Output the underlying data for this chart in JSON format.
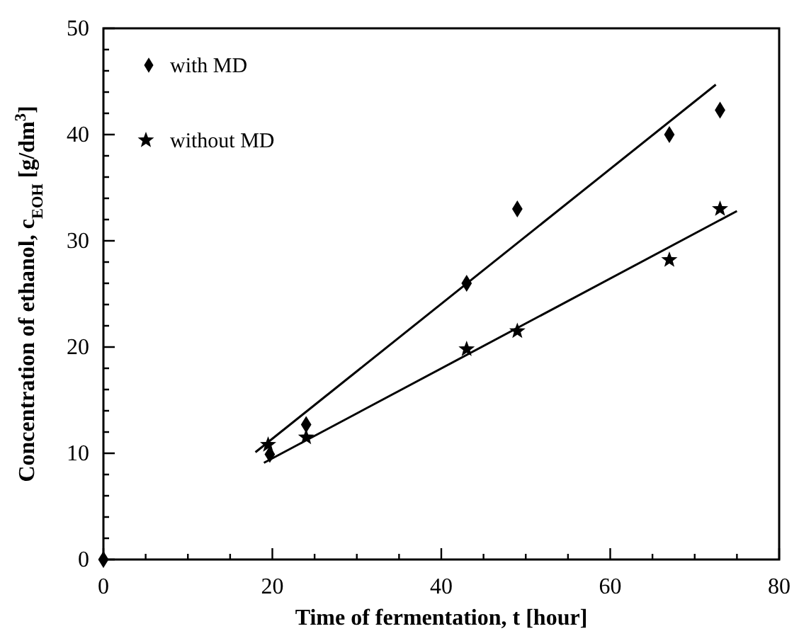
{
  "chart_data": {
    "type": "scatter",
    "xlabel": "Time of fermentation, t [hour]",
    "ylabel": "Concentration of ethanol, c$_{EOH}$  [g/dm$^{3}$]",
    "xlim": [
      0,
      80
    ],
    "ylim": [
      0,
      50
    ],
    "xticks": [
      0,
      {
        "value": 5,
        "label": null
      },
      {
        "value": 10,
        "label": null
      },
      {
        "value": 15,
        "label": null
      },
      20,
      {
        "value": 25,
        "label": null
      },
      {
        "value": 30,
        "label": null
      },
      {
        "value": 35,
        "label": null
      },
      40,
      {
        "value": 45,
        "label": null
      },
      {
        "value": 50,
        "label": null
      },
      {
        "value": 55,
        "label": null
      },
      60,
      {
        "value": 65,
        "label": null
      },
      {
        "value": 70,
        "label": null
      },
      {
        "value": 75,
        "label": null
      },
      80
    ],
    "yticks": [
      0,
      {
        "value": 2,
        "label": null
      },
      {
        "value": 4,
        "label": null
      },
      {
        "value": 6,
        "label": null
      },
      {
        "value": 8,
        "label": null
      },
      10,
      {
        "value": 12,
        "label": null
      },
      {
        "value": 14,
        "label": null
      },
      {
        "value": 16,
        "label": null
      },
      {
        "value": 18,
        "label": null
      },
      20,
      {
        "value": 22,
        "label": null
      },
      {
        "value": 24,
        "label": null
      },
      {
        "value": 26,
        "label": null
      },
      {
        "value": 28,
        "label": null
      },
      30,
      {
        "value": 32,
        "label": null
      },
      {
        "value": 34,
        "label": null
      },
      {
        "value": 36,
        "label": null
      },
      {
        "value": 38,
        "label": null
      },
      40,
      {
        "value": 42,
        "label": null
      },
      {
        "value": 44,
        "label": null
      },
      {
        "value": 46,
        "label": null
      },
      {
        "value": 48,
        "label": null
      },
      50
    ],
    "legend": "top left",
    "grid": false,
    "series": [
      {
        "name": "with MD",
        "marker": "diamond",
        "color": "#000000",
        "x": [
          0,
          19.7,
          24,
          43,
          49,
          67,
          73
        ],
        "values": [
          0,
          9.9,
          12.7,
          26,
          33,
          40,
          42.3
        ]
      },
      {
        "name": "without MD",
        "marker": "star",
        "color": "#000000",
        "x": [
          19.5,
          24,
          43,
          49,
          67,
          73
        ],
        "values": [
          10.8,
          11.5,
          19.8,
          21.5,
          28.2,
          33
        ]
      },
      {
        "type": "line",
        "color": "#000000",
        "x": [
          18,
          72.5
        ],
        "values": [
          10.1,
          44.7
        ]
      },
      {
        "type": "line",
        "color": "#000000",
        "x": [
          19,
          75
        ],
        "values": [
          9.1,
          32.8
        ]
      }
    ]
  }
}
